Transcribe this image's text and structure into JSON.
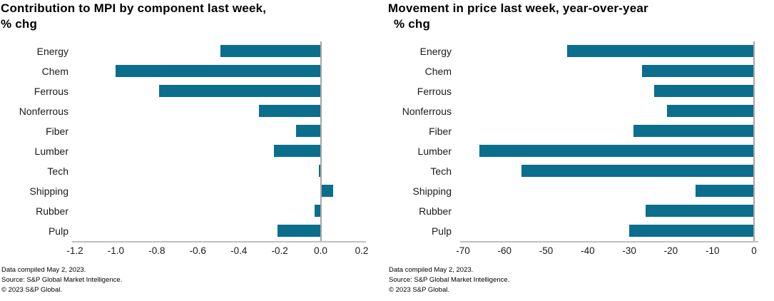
{
  "colors": {
    "bar": "#0B6E8C",
    "axis_line": "#bfbfbf",
    "zero_line": "#a6a6a6",
    "text": "#000000"
  },
  "chart_data": [
    {
      "type": "bar",
      "orientation": "horizontal",
      "title": "Contribution to MPI by component last week,",
      "subtitle": "% chg",
      "categories": [
        "Energy",
        "Chem",
        "Ferrous",
        "Nonferrous",
        "Fiber",
        "Lumber",
        "Tech",
        "Shipping",
        "Rubber",
        "Pulp"
      ],
      "values": [
        -0.49,
        -1.0,
        -0.79,
        -0.3,
        -0.12,
        -0.23,
        -0.01,
        0.06,
        -0.03,
        -0.21
      ],
      "xlim": [
        -1.2,
        0.2
      ],
      "xticks": [
        -1.2,
        -1.0,
        -0.8,
        -0.6,
        -0.4,
        -0.2,
        0.0,
        0.2
      ],
      "xtick_labels": [
        "-1.2",
        "-1.0",
        "-0.8",
        "-0.6",
        "-0.4",
        "-0.2",
        "0.0",
        "0.2"
      ],
      "xlabel": "",
      "ylabel": "",
      "grid": false,
      "legend": false,
      "bar_color": "#0B6E8C"
    },
    {
      "type": "bar",
      "orientation": "horizontal",
      "title": "Movement in price last week, year-over-year",
      "subtitle": "% chg",
      "categories": [
        "Energy",
        "Chem",
        "Ferrous",
        "Nonferrous",
        "Fiber",
        "Lumber",
        "Tech",
        "Shipping",
        "Rubber",
        "Pulp"
      ],
      "values": [
        -45,
        -27,
        -24,
        -21,
        -29,
        -66,
        -56,
        -14,
        -26,
        -30
      ],
      "xlim": [
        -70,
        0
      ],
      "xticks": [
        -70,
        -60,
        -50,
        -40,
        -30,
        -20,
        -10,
        0
      ],
      "xtick_labels": [
        "-70",
        "-60",
        "-50",
        "-40",
        "-30",
        "-20",
        "-10",
        "0"
      ],
      "xlabel": "",
      "ylabel": "",
      "grid": false,
      "legend": false,
      "bar_color": "#0B6E8C"
    }
  ],
  "footnote": {
    "line1": "Data compiled May 2, 2023.",
    "line2": "Source: S&P Global Market Intelligence.",
    "line3": "© 2023 S&P Global."
  }
}
